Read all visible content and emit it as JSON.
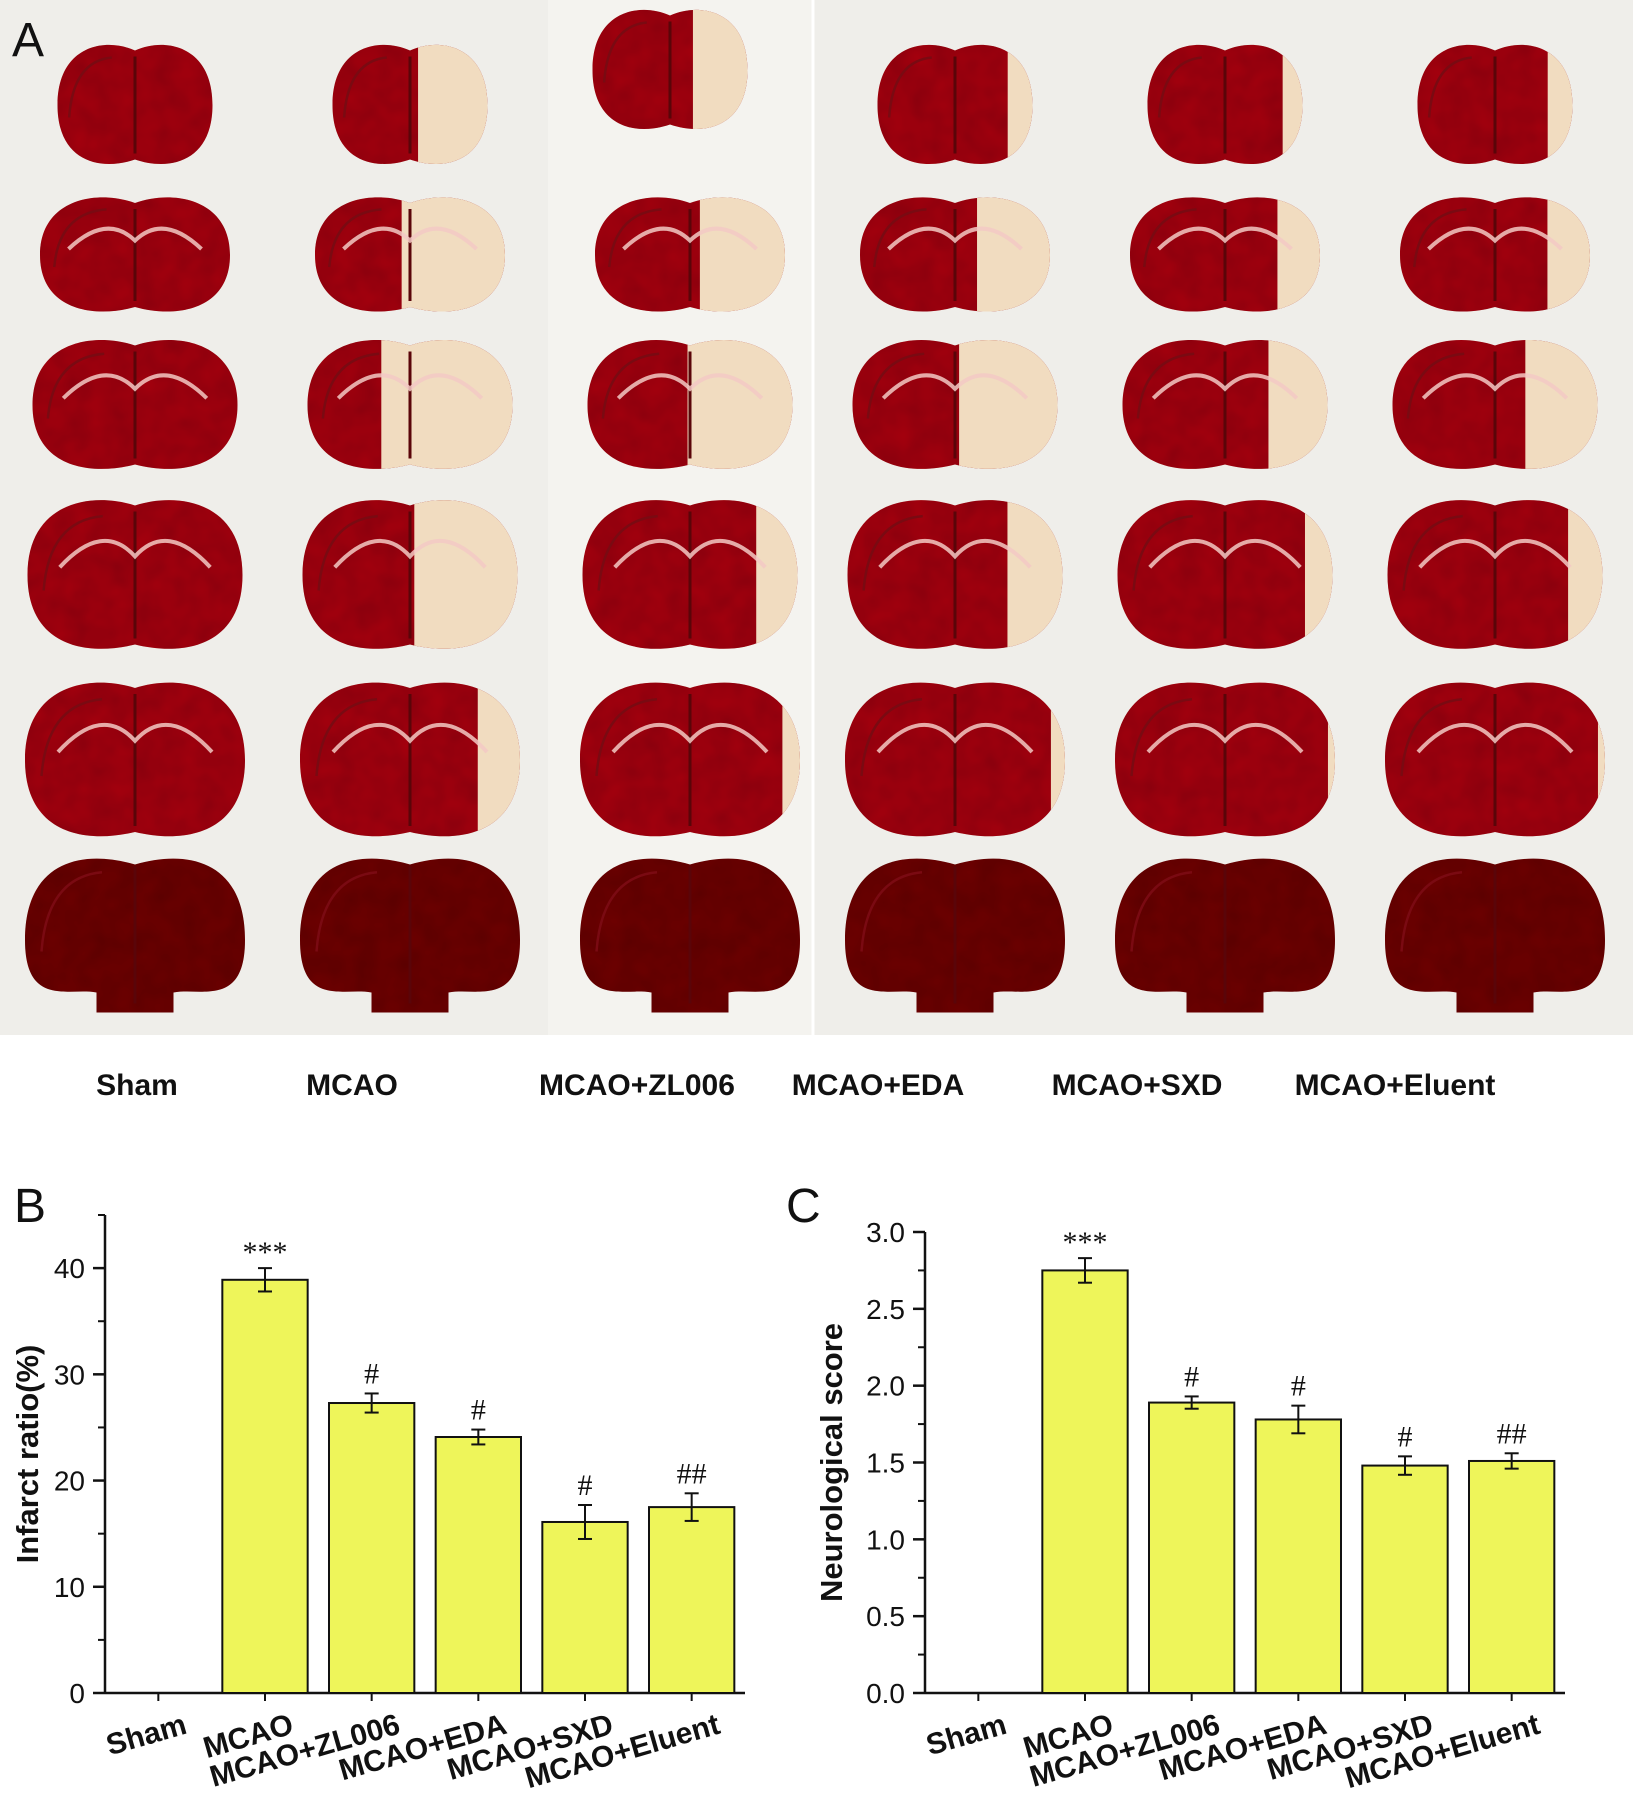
{
  "panel_a": {
    "label": "A",
    "groups": [
      "Sham",
      "MCAO",
      "MCAO+ZL006",
      "MCAO+EDA",
      "MCAO+SXD",
      "MCAO+Eluent"
    ],
    "slices_per_group": 6,
    "colors": {
      "background": "#efeeea",
      "tissue_healthy": "#a50f16",
      "tissue_dark": "#6e0710",
      "tissue_infarct": "#f1dcc0"
    },
    "infarct_fraction": [
      [
        0,
        0,
        0,
        0,
        0,
        0
      ],
      [
        0.28,
        0.34,
        0.4,
        0.3,
        0.12,
        0
      ],
      [
        0.22,
        0.28,
        0.32,
        0.12,
        0.05,
        0
      ],
      [
        0.1,
        0.24,
        0.3,
        0.16,
        0.04,
        0
      ],
      [
        0.08,
        0.14,
        0.18,
        0.08,
        0.02,
        0
      ],
      [
        0.1,
        0.14,
        0.22,
        0.1,
        0.02,
        0
      ]
    ]
  },
  "chart_data": [
    {
      "panel": "B",
      "type": "bar",
      "xlabel": "",
      "ylabel": "Infarct ratio(%)",
      "ylim": [
        0,
        45
      ],
      "yticks": [
        "0",
        "10",
        "20",
        "30",
        "40"
      ],
      "categories": [
        "Sham",
        "MCAO",
        "MCAO+ZL006",
        "MCAO+EDA",
        "MCAO+SXD",
        "MCAO+Eluent"
      ],
      "values": [
        0,
        38.9,
        27.3,
        24.1,
        16.1,
        17.5
      ],
      "errors": [
        0,
        1.1,
        0.9,
        0.7,
        1.6,
        1.3
      ],
      "significance": [
        "",
        "***",
        "#",
        "#",
        "#",
        "##"
      ],
      "bar_color": "#eef55a",
      "grid": false,
      "legend": "none"
    },
    {
      "panel": "C",
      "type": "bar",
      "xlabel": "",
      "ylabel": "Neurological score",
      "ylim": [
        0,
        3.0
      ],
      "yticks": [
        "0.0",
        "0.5",
        "1.0",
        "1.5",
        "2.0",
        "2.5",
        "3.0"
      ],
      "categories": [
        "Sham",
        "MCAO",
        "MCAO+ZL006",
        "MCAO+EDA",
        "MCAO+SXD",
        "MCAO+Eluent"
      ],
      "values": [
        0,
        2.75,
        1.89,
        1.78,
        1.48,
        1.51
      ],
      "errors": [
        0,
        0.08,
        0.04,
        0.09,
        0.06,
        0.05
      ],
      "significance": [
        "",
        "***",
        "#",
        "#",
        "#",
        "##"
      ],
      "bar_color": "#eef55a",
      "grid": false,
      "legend": "none"
    }
  ]
}
